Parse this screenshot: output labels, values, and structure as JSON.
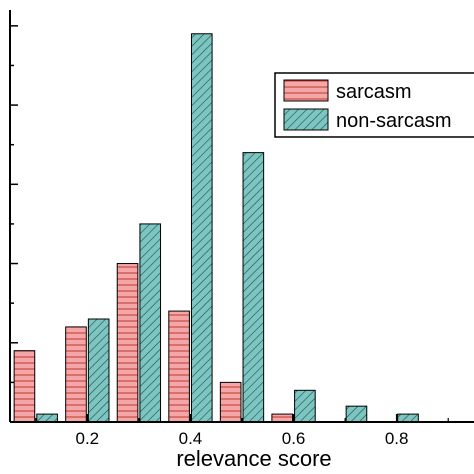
{
  "chart_data": {
    "type": "bar",
    "xlabel": "relevance score",
    "ylabel": "",
    "x_tick_labels": [
      "0.2",
      "0.4",
      "0.6",
      "0.8"
    ],
    "x_ticks": [
      0.2,
      0.4,
      0.6,
      0.8
    ],
    "xlim": [
      0.05,
      0.95
    ],
    "ylim": [
      0,
      52
    ],
    "bin_centers": [
      0.1,
      0.2,
      0.3,
      0.4,
      0.5,
      0.6,
      0.7,
      0.8
    ],
    "series": [
      {
        "name": "sarcasm",
        "color": "#f4a6a8",
        "pattern": "horizontal-lines",
        "values": [
          9,
          12,
          20,
          14,
          5,
          1,
          0,
          0
        ]
      },
      {
        "name": "non-sarcasm",
        "color": "#7cc5c0",
        "pattern": "diagonal-lines",
        "values": [
          1,
          13,
          25,
          49,
          34,
          4,
          2,
          1
        ]
      }
    ],
    "legend": {
      "position": "top-right",
      "items": [
        "sarcasm",
        "non-sarcasm"
      ]
    },
    "grid": false
  }
}
